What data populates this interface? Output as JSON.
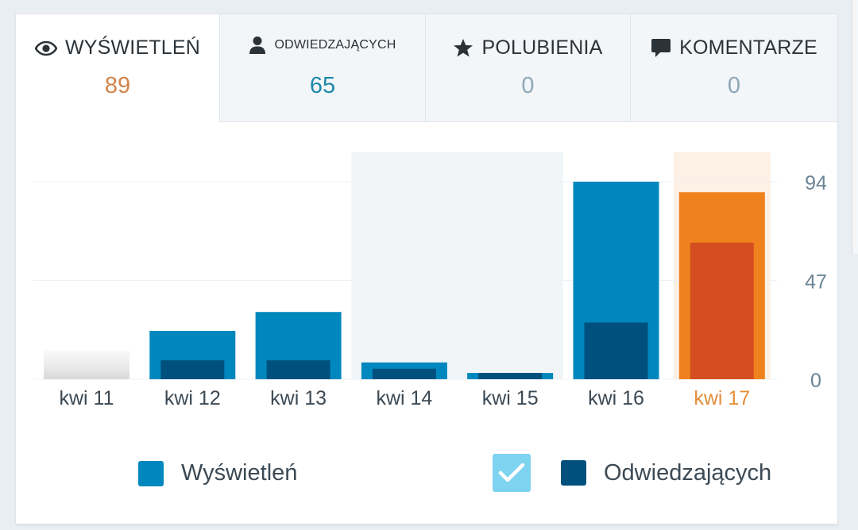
{
  "tabs": [
    {
      "label": "WYŚWIETLEŃ",
      "value": "89",
      "icon": "eye-icon",
      "value_color": "#d2844b",
      "active": true
    },
    {
      "label": "ODWIEDZAJĄCYCH",
      "value": "65",
      "icon": "person-icon",
      "value_color": "#1d89a8",
      "active": false
    },
    {
      "label": "POLUBIENIA",
      "value": "0",
      "icon": "star-icon",
      "value_color": "#8fa7b5",
      "active": false
    },
    {
      "label": "KOMENTARZE",
      "value": "0",
      "icon": "comment-icon",
      "value_color": "#8fa7b5",
      "active": false
    }
  ],
  "chart_data": {
    "type": "bar",
    "categories": [
      "kwi 11",
      "kwi 12",
      "kwi 13",
      "kwi 14",
      "kwi 15",
      "kwi 16",
      "kwi 17"
    ],
    "series": [
      {
        "name": "Wyświetleń",
        "values": [
          0,
          23,
          32,
          8,
          3,
          94,
          89
        ],
        "color": "#0087be",
        "highlight_color": "#f0821e"
      },
      {
        "name": "Odwiedzających",
        "values": [
          0,
          9,
          9,
          5,
          3,
          27,
          65
        ],
        "color": "#00507e",
        "highlight_color": "#d54e21"
      }
    ],
    "y_ticks": [
      "94",
      "47",
      "0"
    ],
    "ylim": [
      0,
      94
    ],
    "shaded_columns": [
      "kwi 14",
      "kwi 15"
    ],
    "selected_column": "kwi 17",
    "grid": true,
    "legend_position": "bottom"
  },
  "legend": {
    "items": [
      {
        "label": "Wyświetleń",
        "color": "#0087be"
      },
      {
        "label": "Odwiedzających",
        "color": "#00507e"
      }
    ],
    "checkbox_checked": true
  },
  "colors": {
    "axis_text": "#6d8494",
    "selected_label": "#e58d3b",
    "category_text": "#3c4a55"
  }
}
